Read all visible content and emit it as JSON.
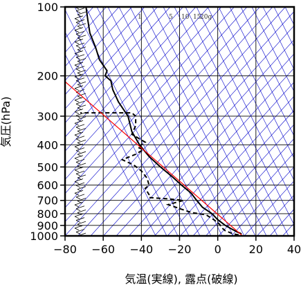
{
  "chart_data": {
    "type": "line",
    "xlabel": "気温(実線), 露点(破線)",
    "ylabel": "気圧(hPa)",
    "xlim": [
      -80,
      40
    ],
    "ylim": [
      1000,
      100
    ],
    "y_scale": "log",
    "x_ticks": [
      -80,
      -60,
      -40,
      -20,
      0,
      20,
      40
    ],
    "x_tick_labels": [
      "−80",
      "−60",
      "−40",
      "−20",
      "0",
      "20",
      "40"
    ],
    "y_ticks": [
      100,
      200,
      300,
      400,
      500,
      600,
      700,
      800,
      900,
      1000
    ],
    "y_tick_labels": [
      "100",
      "200",
      "300",
      "400",
      "500",
      "600",
      "700",
      "800",
      "900",
      "1000"
    ],
    "mixing_ratio_labels": [
      {
        "text": "1",
        "value": 1
      },
      {
        "text": "5",
        "value": 5
      },
      {
        "text": "10",
        "value": 10
      },
      {
        "text": "15",
        "value": 15
      },
      {
        "text": "20g",
        "value": 20
      }
    ],
    "colors": {
      "temperature": "#000000",
      "dewpoint": "#000000",
      "parcel": "#ff0000",
      "isotherms_dry_adiabats": "#0000cc",
      "grid": "#000000"
    },
    "series": [
      {
        "style": "solid",
        "points": [
          [
            12.5,
            980
          ],
          [
            10,
            960
          ],
          [
            7,
            930
          ],
          [
            4,
            900
          ],
          [
            0,
            850
          ],
          [
            -3,
            800
          ],
          [
            -8,
            750
          ],
          [
            -11,
            700
          ],
          [
            -14,
            650
          ],
          [
            -19,
            600
          ],
          [
            -24,
            550
          ],
          [
            -30,
            500
          ],
          [
            -36,
            450
          ],
          [
            -41,
            400
          ],
          [
            -45,
            350
          ],
          [
            -47,
            300
          ],
          [
            -52,
            260
          ],
          [
            -55,
            230
          ],
          [
            -56,
            210
          ],
          [
            -59,
            200
          ],
          [
            -58,
            190
          ],
          [
            -62,
            170
          ],
          [
            -64,
            150
          ],
          [
            -67,
            130
          ],
          [
            -68,
            115
          ],
          [
            -69,
            100
          ]
        ]
      },
      {
        "style": "dashed",
        "points": [
          [
            11,
            990
          ],
          [
            8,
            980
          ],
          [
            4,
            950
          ],
          [
            2,
            920
          ],
          [
            1,
            890
          ],
          [
            -2,
            850
          ],
          [
            -6,
            810
          ],
          [
            -14,
            790
          ],
          [
            -20,
            760
          ],
          [
            -26,
            730
          ],
          [
            -18,
            700
          ],
          [
            -25,
            690
          ],
          [
            -36,
            680
          ],
          [
            -36,
            660
          ],
          [
            -38,
            620
          ],
          [
            -36,
            600
          ],
          [
            -37,
            560
          ],
          [
            -40,
            520
          ],
          [
            -44,
            490
          ],
          [
            -50,
            465
          ],
          [
            -43,
            440
          ],
          [
            -39,
            420
          ],
          [
            -42,
            410
          ],
          [
            -38,
            390
          ],
          [
            -45,
            360
          ],
          [
            -43,
            330
          ],
          [
            -43,
            300
          ],
          [
            -45,
            290
          ],
          [
            -60,
            290
          ],
          [
            -72,
            290
          ]
        ]
      },
      {
        "style": "parcel",
        "points": [
          [
            13,
            1000
          ],
          [
            -82,
            205
          ]
        ]
      }
    ],
    "legend": "none",
    "grid": true
  }
}
